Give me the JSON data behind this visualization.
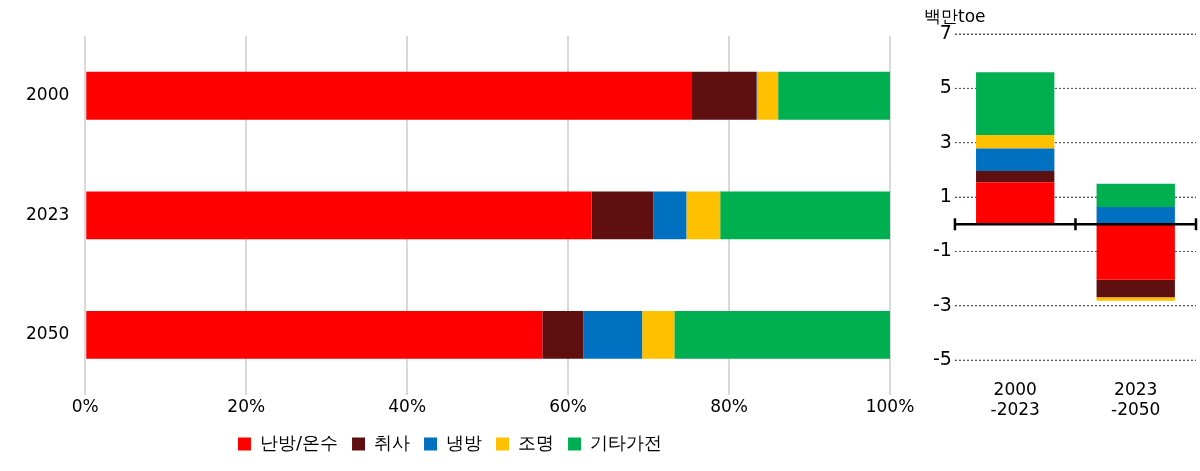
{
  "chart_data": [
    {
      "type": "bar",
      "orientation": "horizontal",
      "stacked": true,
      "categories": [
        "2000",
        "2023",
        "2050"
      ],
      "series": [
        {
          "name": "난방/온수",
          "color": "#ff0000",
          "values": [
            75.4,
            62.9,
            56.8
          ]
        },
        {
          "name": "취사",
          "color": "#5f0f0f",
          "values": [
            8.0,
            7.7,
            5.1
          ]
        },
        {
          "name": "냉방",
          "color": "#0070c0",
          "values": [
            0.1,
            4.1,
            7.3
          ]
        },
        {
          "name": "조명",
          "color": "#ffc000",
          "values": [
            2.6,
            4.2,
            4.0
          ]
        },
        {
          "name": "기타가전",
          "color": "#00b050",
          "values": [
            13.9,
            21.1,
            26.8
          ]
        }
      ],
      "xlim": [
        0,
        100
      ],
      "xticks": [
        {
          "value": 0,
          "label": "0%"
        },
        {
          "value": 20,
          "label": "20%"
        },
        {
          "value": 40,
          "label": "40%"
        },
        {
          "value": 60,
          "label": "60%"
        },
        {
          "value": 80,
          "label": "80%"
        },
        {
          "value": 100,
          "label": "100%"
        }
      ],
      "grid": "x",
      "legend": "bottom"
    },
    {
      "type": "bar",
      "stacked": true,
      "categories": [
        "2000\n-2023",
        "2023\n-2050"
      ],
      "ylabel": "백만toe",
      "series": [
        {
          "color": "#ff0000",
          "values": [
            1.55,
            -2.04
          ]
        },
        {
          "color": "#5f0f0f",
          "values": [
            0.41,
            -0.64
          ]
        },
        {
          "color": "#0070c0",
          "values": [
            0.83,
            0.64
          ]
        },
        {
          "color": "#ffc000",
          "values": [
            0.49,
            -0.13
          ]
        },
        {
          "color": "#00b050",
          "values": [
            2.31,
            0.85
          ]
        }
      ],
      "ylim": [
        -5,
        7
      ],
      "yticks": [
        -5,
        -3,
        -1,
        1,
        3,
        5,
        7
      ],
      "grid": "y",
      "legend": false,
      "ref_lines": [
        {
          "axis": "y",
          "value": 0,
          "color": "#000000"
        }
      ]
    }
  ]
}
